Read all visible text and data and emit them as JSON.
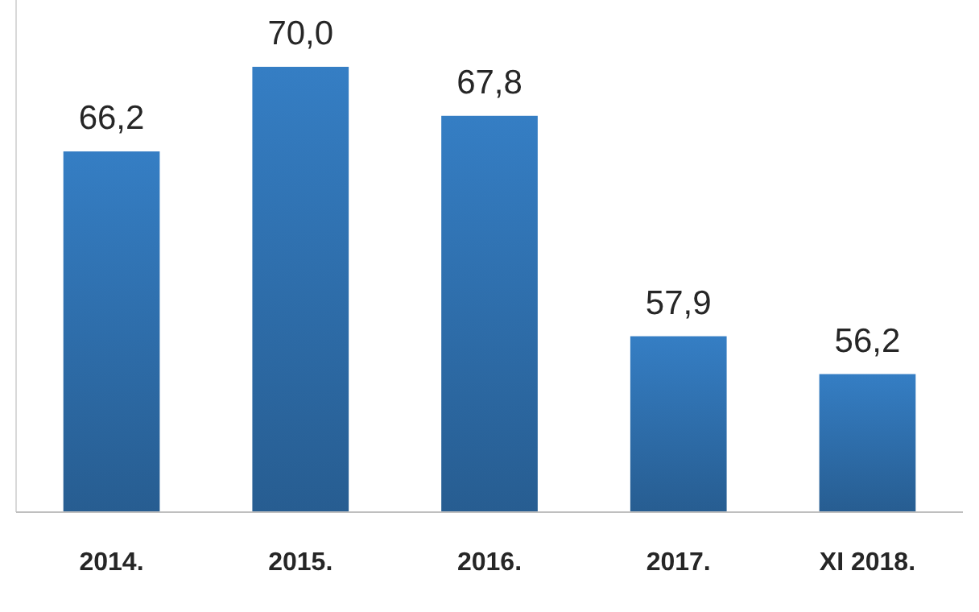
{
  "chart_data": {
    "type": "bar",
    "categories": [
      "2014.",
      "2015.",
      "2016.",
      "2017.",
      "XI 2018."
    ],
    "values": [
      66.2,
      70.0,
      67.8,
      57.9,
      56.2
    ],
    "value_labels": [
      "66,2",
      "70,0",
      "67,8",
      "57,9",
      "56,2"
    ],
    "color": "#2f6fad",
    "ylim": [
      50,
      73
    ],
    "tick_labels": "x"
  }
}
